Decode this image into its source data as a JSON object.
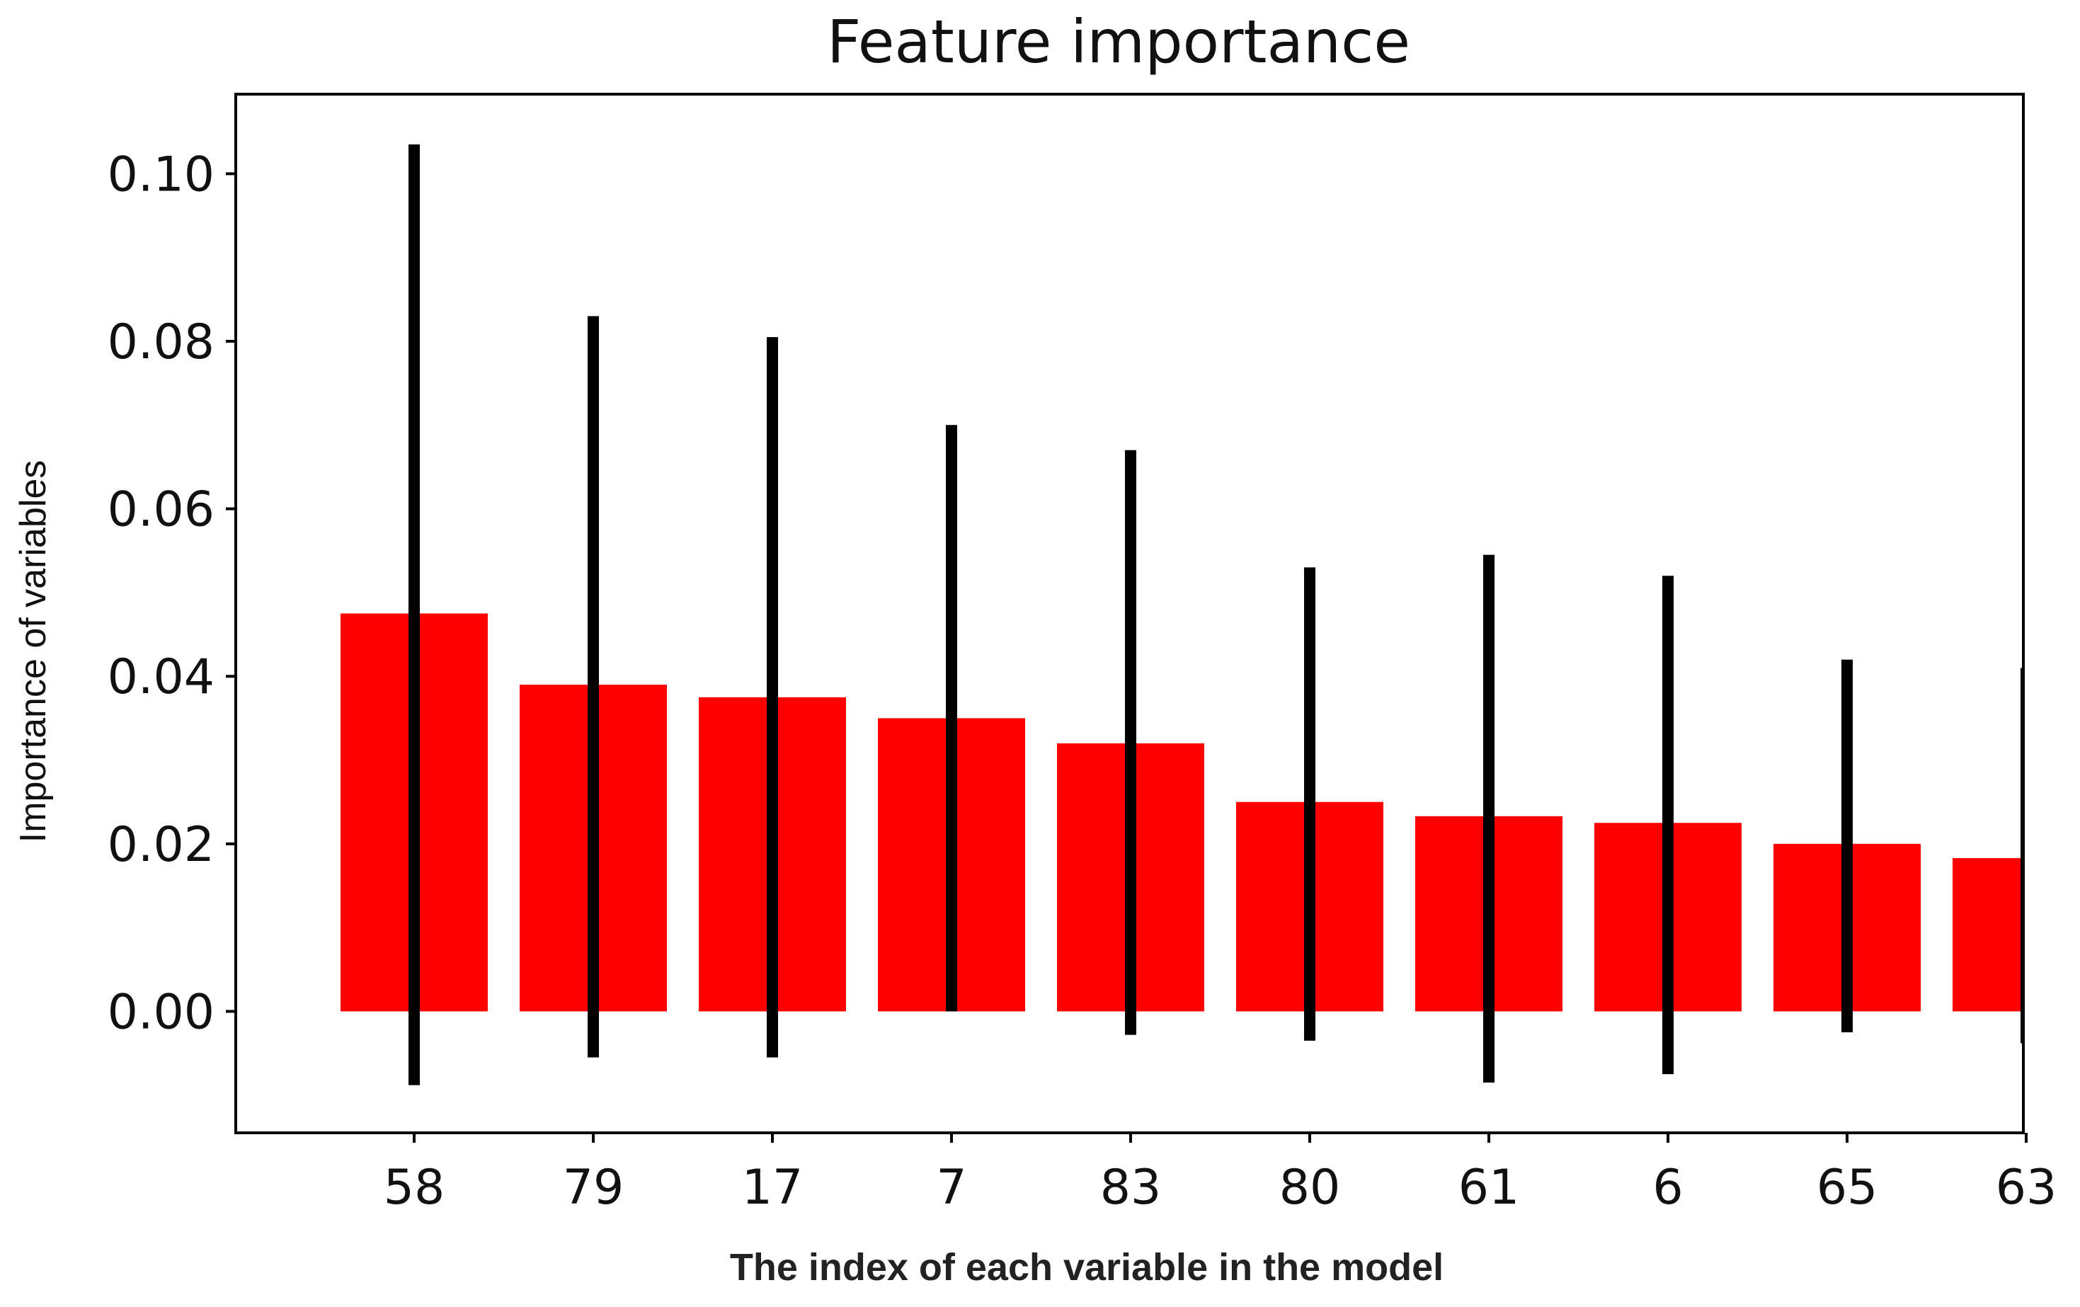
{
  "chart_data": {
    "type": "bar",
    "title": "Feature importance",
    "xlabel": "The index of each variable in the model",
    "ylabel": "Importance of variables",
    "categories": [
      "58",
      "79",
      "17",
      "7",
      "83",
      "80",
      "61",
      "6",
      "65",
      "63"
    ],
    "values": [
      0.0475,
      0.039,
      0.0375,
      0.035,
      0.032,
      0.025,
      0.0233,
      0.0225,
      0.02,
      0.0183
    ],
    "error_upper": [
      0.1035,
      0.083,
      0.0805,
      0.07,
      0.067,
      0.053,
      0.0545,
      0.052,
      0.042,
      0.041
    ],
    "error_lower": [
      -0.0088,
      -0.0055,
      -0.0055,
      0.0,
      -0.0028,
      -0.0035,
      -0.0085,
      -0.0075,
      -0.0025,
      -0.0038
    ],
    "yticks": [
      "0.00",
      "0.02",
      "0.04",
      "0.06",
      "0.08",
      "0.10"
    ],
    "ylim": [
      -0.0145,
      0.1095
    ],
    "grid": false,
    "colors": {
      "bar": "#ff0000",
      "errorbar": "#000000",
      "axis": "#000000"
    }
  }
}
